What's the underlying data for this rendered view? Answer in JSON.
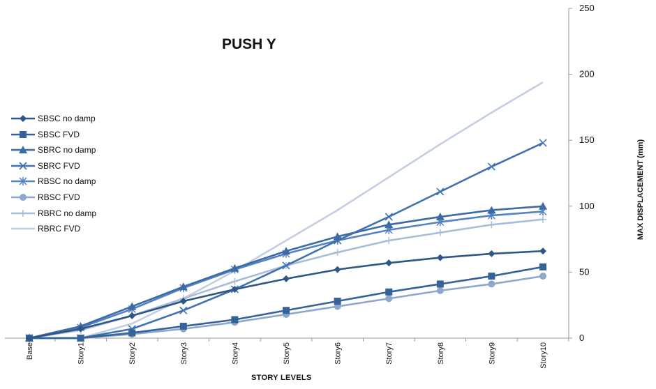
{
  "chart_data": {
    "type": "line",
    "title": "PUSH Y",
    "xlabel": "STORY LEVELS",
    "ylabel": "MAX DISPLACEMENT (mm)",
    "ylim": [
      0,
      250
    ],
    "yticks": [
      0,
      50,
      100,
      150,
      200,
      250
    ],
    "y_axis_side": "right",
    "grid": false,
    "legend_position": "left",
    "categories": [
      "Base",
      "Story1",
      "Story2",
      "Story3",
      "Story4",
      "Story5",
      "Story6",
      "Story7",
      "Story8",
      "Story9",
      "Story10"
    ],
    "series": [
      {
        "name": "SBSC no damp",
        "marker": "diamond",
        "color": "#2e5785",
        "values": [
          0,
          7,
          17,
          28,
          37,
          45,
          52,
          57,
          61,
          64,
          66
        ]
      },
      {
        "name": "SBSC FVD",
        "marker": "square",
        "color": "#36629a",
        "values": [
          0,
          0,
          4,
          9,
          14,
          21,
          28,
          35,
          41,
          47,
          54
        ]
      },
      {
        "name": "SBRC no damp",
        "marker": "triangle",
        "color": "#3c6ba6",
        "values": [
          0,
          9,
          24,
          39,
          53,
          66,
          77,
          86,
          92,
          97,
          100
        ]
      },
      {
        "name": "SBRC FVD",
        "marker": "x",
        "color": "#3f72b2",
        "values": [
          0,
          0,
          7,
          21,
          37,
          55,
          74,
          92,
          111,
          130,
          148
        ]
      },
      {
        "name": "RBSC no damp",
        "marker": "star",
        "color": "#5582c1",
        "values": [
          0,
          8,
          22,
          38,
          52,
          64,
          74,
          82,
          88,
          93,
          96
        ]
      },
      {
        "name": "RBSC FVD",
        "marker": "circle",
        "color": "#8ea8cc",
        "values": [
          0,
          0,
          3,
          7,
          12,
          18,
          24,
          30,
          36,
          41,
          47
        ]
      },
      {
        "name": "RBRC no damp",
        "marker": "plus",
        "color": "#a9bcd8",
        "values": [
          0,
          6,
          17,
          30,
          43,
          55,
          65,
          74,
          80,
          86,
          90
        ]
      },
      {
        "name": "RBRC FVD",
        "marker": "none",
        "color": "#c2cfe2",
        "values": [
          0,
          0,
          11,
          30,
          51,
          74,
          97,
          122,
          147,
          171,
          194
        ]
      }
    ]
  }
}
